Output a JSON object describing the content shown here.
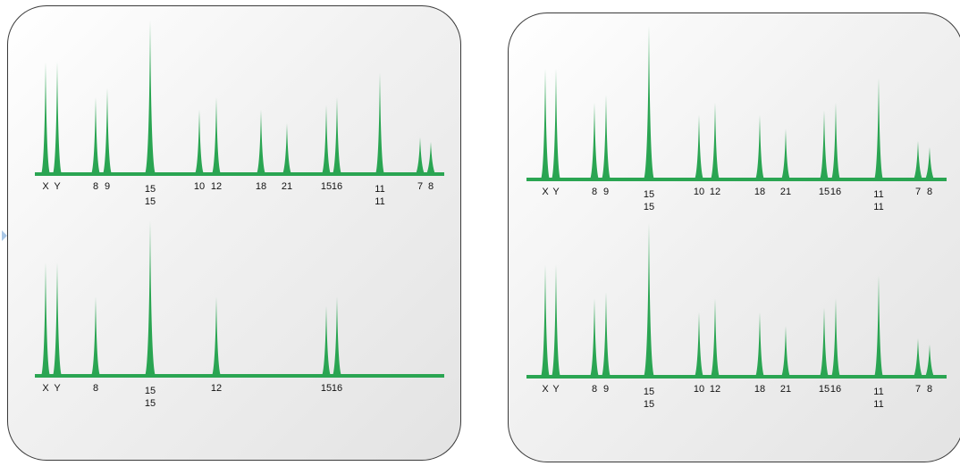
{
  "colors": {
    "peak": "#2aa552",
    "panel_border": "#3a3a3a",
    "marker": "#a9c7e6"
  },
  "panels": [
    {
      "name": "left",
      "traces": [
        {
          "name": "trace-left-top",
          "peaks": [
            {
              "height": 0.73,
              "label": "X"
            },
            {
              "height": 0.73,
              "label": "Y"
            },
            {
              "height": 0.5,
              "label": "8"
            },
            {
              "height": 0.56,
              "label": "9"
            },
            {
              "height": 1.0,
              "label": "15",
              "label2": "15"
            },
            {
              "height": 0.42,
              "label": "10"
            },
            {
              "height": 0.5,
              "label": "12"
            },
            {
              "height": 0.42,
              "label": "18"
            },
            {
              "height": 0.33,
              "label": "21"
            },
            {
              "height": 0.45,
              "label": "15"
            },
            {
              "height": 0.5,
              "label": "16"
            },
            {
              "height": 0.66,
              "label": "11",
              "label2": "11"
            },
            {
              "height": 0.24,
              "label": "7"
            },
            {
              "height": 0.21,
              "label": "8"
            }
          ]
        },
        {
          "name": "trace-left-bottom",
          "peaks": [
            {
              "height": 0.73,
              "label": "X"
            },
            {
              "height": 0.73,
              "label": "Y"
            },
            {
              "height": 0.51,
              "label": "8"
            },
            {
              "height": 1.0,
              "label": "15",
              "label2": "15"
            },
            {
              "height": 0.51,
              "label": "12"
            },
            {
              "height": 0.45,
              "label": "15"
            },
            {
              "height": 0.51,
              "label": "16"
            }
          ]
        }
      ]
    },
    {
      "name": "right",
      "traces": [
        {
          "name": "trace-right-top",
          "peaks": [
            {
              "height": 0.72,
              "label": "X"
            },
            {
              "height": 0.72,
              "label": "Y"
            },
            {
              "height": 0.5,
              "label": "8"
            },
            {
              "height": 0.55,
              "label": "9"
            },
            {
              "height": 1.0,
              "label": "15",
              "label2": "15"
            },
            {
              "height": 0.42,
              "label": "10"
            },
            {
              "height": 0.5,
              "label": "12"
            },
            {
              "height": 0.42,
              "label": "18"
            },
            {
              "height": 0.33,
              "label": "21"
            },
            {
              "height": 0.45,
              "label": "15"
            },
            {
              "height": 0.5,
              "label": "16"
            },
            {
              "height": 0.66,
              "label": "11",
              "label2": "11"
            },
            {
              "height": 0.25,
              "label": "7"
            },
            {
              "height": 0.21,
              "label": "8"
            }
          ]
        },
        {
          "name": "trace-right-bottom",
          "peaks": [
            {
              "height": 0.73,
              "label": "X"
            },
            {
              "height": 0.73,
              "label": "Y"
            },
            {
              "height": 0.51,
              "label": "8"
            },
            {
              "height": 0.55,
              "label": "9"
            },
            {
              "height": 1.0,
              "label": "15",
              "label2": "15"
            },
            {
              "height": 0.42,
              "label": "10"
            },
            {
              "height": 0.51,
              "label": "12"
            },
            {
              "height": 0.42,
              "label": "18"
            },
            {
              "height": 0.33,
              "label": "21"
            },
            {
              "height": 0.45,
              "label": "15"
            },
            {
              "height": 0.51,
              "label": "16"
            },
            {
              "height": 0.66,
              "label": "11",
              "label2": "11"
            },
            {
              "height": 0.25,
              "label": "7"
            },
            {
              "height": 0.21,
              "label": "8"
            }
          ]
        }
      ]
    }
  ]
}
